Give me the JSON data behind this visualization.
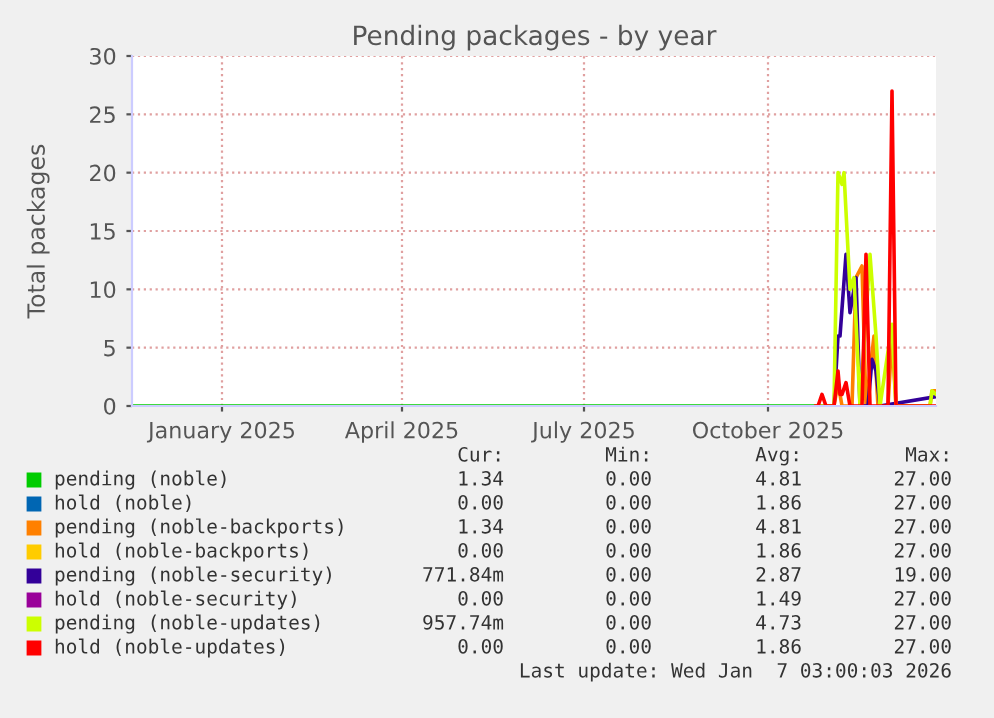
{
  "chart_data": {
    "type": "line",
    "title": "Pending packages - by year",
    "ylabel": "Total packages",
    "xlim": [
      "2024-12-01",
      "2026-01-07"
    ],
    "ylim": [
      0,
      30
    ],
    "yticks": [
      0,
      5,
      10,
      15,
      20,
      25,
      30
    ],
    "xticks": [
      {
        "value": "2025-01-15",
        "label": "January 2025"
      },
      {
        "value": "2025-04-15",
        "label": "April 2025"
      },
      {
        "value": "2025-07-15",
        "label": "July 2025"
      },
      {
        "value": "2025-10-15",
        "label": "October 2025"
      }
    ],
    "grid": true,
    "legend": "bottom",
    "series": [
      {
        "name": "pending (noble)",
        "color": "#00cc00",
        "x": [
          "2024-12-01",
          "2025-11-07"
        ],
        "values": [
          0,
          0
        ]
      },
      {
        "name": "hold (noble)",
        "color": "#0066b3"
      },
      {
        "name": "pending (noble-backports)",
        "color": "#ff8000",
        "x": [
          "2025-11-08",
          "2025-11-17",
          "2025-11-19",
          "2025-11-21",
          "2025-11-26",
          "2025-11-28",
          "2025-12-01",
          "2025-12-03",
          "2025-12-07",
          "2025-12-09",
          "2025-12-14",
          "2025-12-16",
          "2025-12-18",
          "2026-01-04",
          "2026-01-05",
          "2026-01-07"
        ],
        "values": [
          0,
          0,
          2,
          0,
          0,
          11,
          12,
          0,
          6,
          0,
          0,
          6,
          0,
          0,
          1.3,
          1.3
        ]
      },
      {
        "name": "hold (noble-backports)",
        "color": "#ffcc00"
      },
      {
        "name": "pending (noble-security)",
        "color": "#330099",
        "x": [
          "2025-11-08",
          "2025-11-17",
          "2025-11-19",
          "2025-11-20",
          "2025-11-23",
          "2025-11-25",
          "2025-11-27",
          "2025-11-28",
          "2025-11-30",
          "2025-12-04",
          "2025-12-06",
          "2025-12-08",
          "2025-12-10",
          "2026-01-07"
        ],
        "values": [
          0,
          0,
          6,
          6,
          13,
          8,
          10,
          11,
          0,
          0,
          4,
          3,
          0,
          0.8
        ]
      },
      {
        "name": "hold (noble-security)",
        "color": "#990099"
      },
      {
        "name": "pending (noble-updates)",
        "color": "#ccff00",
        "x": [
          "2025-11-08",
          "2025-11-17",
          "2025-11-19",
          "2025-11-21",
          "2025-11-22",
          "2025-11-25",
          "2025-11-27",
          "2025-11-30",
          "2025-12-05",
          "2025-12-08",
          "2025-12-10",
          "2025-12-16",
          "2025-12-18",
          "2026-01-04",
          "2026-01-05",
          "2026-01-07"
        ],
        "values": [
          0,
          0,
          20,
          19,
          20,
          10,
          11,
          0,
          13,
          6,
          0,
          7,
          0,
          0,
          1.3,
          1
        ]
      },
      {
        "name": "hold (noble-updates)",
        "color": "#ff0000",
        "x": [
          "2025-11-08",
          "2025-11-09",
          "2025-11-11",
          "2025-11-13",
          "2025-11-17",
          "2025-11-19",
          "2025-11-20",
          "2025-11-21",
          "2025-11-23",
          "2025-11-25",
          "2025-12-01",
          "2025-12-03",
          "2025-12-05",
          "2025-12-14",
          "2025-12-16",
          "2025-12-18",
          "2026-01-07"
        ],
        "values": [
          0,
          0,
          1,
          0,
          0,
          3,
          1,
          1,
          2,
          0,
          0,
          13,
          0,
          0,
          27,
          0,
          0
        ]
      }
    ],
    "annotations": [
      "Cur:",
      "Min:",
      "Avg:",
      "Max:",
      "1.34",
      "0.00",
      "4.81",
      "27.00",
      "0.00",
      "0.00",
      "1.86",
      "27.00",
      "1.34",
      "0.00",
      "4.81",
      "27.00",
      "0.00",
      "0.00",
      "1.86",
      "27.00",
      "771.84m",
      "0.00",
      "2.87",
      "19.00",
      "0.00",
      "0.00",
      "1.49",
      "27.00",
      "957.74m",
      "0.00",
      "4.73",
      "27.00",
      "0.00",
      "0.00",
      "1.86",
      "27.00",
      "Last update: Wed Jan  7 03:00:03 2026"
    ]
  }
}
